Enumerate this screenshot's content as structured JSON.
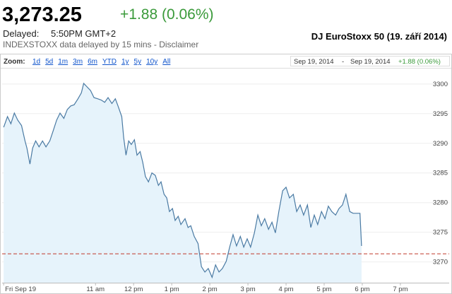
{
  "header": {
    "price": "3,273.25",
    "change": "+1.88 (0.06%)",
    "delayed_label": "Delayed:",
    "delayed_time": "5:50PM GMT+2",
    "source": "INDEXSTOXX data delayed by 15 mins - Disclaimer",
    "title": "DJ EuroStoxx 50 (19. září 2014)"
  },
  "zoom": {
    "label": "Zoom:",
    "options": [
      "1d",
      "5d",
      "1m",
      "3m",
      "6m",
      "YTD",
      "1y",
      "5y",
      "10y",
      "All"
    ],
    "from": "Sep 19, 2014",
    "separator": "-",
    "to": "Sep 19, 2014",
    "change": "+1.88 (0.06%)"
  },
  "chart_data": {
    "type": "line",
    "color": "#4a7aa3",
    "area_color": "#e6f3fb",
    "prev_close": 3271.37,
    "prev_close_color": "#c0392b",
    "grid": true,
    "x": [
      8.59,
      8.69,
      8.78,
      8.87,
      8.96,
      9.06,
      9.15,
      9.2,
      9.28,
      9.35,
      9.43,
      9.52,
      9.61,
      9.7,
      9.8,
      9.89,
      9.98,
      10.07,
      10.17,
      10.26,
      10.35,
      10.44,
      10.54,
      10.63,
      10.69,
      10.78,
      10.87,
      10.96,
      11.06,
      11.15,
      11.24,
      11.33,
      11.43,
      11.52,
      11.59,
      11.69,
      11.74,
      11.8,
      11.87,
      11.94,
      12.02,
      12.09,
      12.17,
      12.24,
      12.31,
      12.39,
      12.48,
      12.57,
      12.65,
      12.72,
      12.8,
      12.87,
      12.94,
      13.02,
      13.09,
      13.17,
      13.24,
      13.35,
      13.43,
      13.5,
      13.59,
      13.69,
      13.78,
      13.87,
      13.96,
      14.06,
      14.15,
      14.24,
      14.33,
      14.43,
      14.52,
      14.61,
      14.7,
      14.8,
      14.89,
      14.98,
      15.07,
      15.17,
      15.26,
      15.35,
      15.44,
      15.54,
      15.63,
      15.72,
      15.81,
      15.91,
      16.0,
      16.09,
      16.19,
      16.28,
      16.37,
      16.46,
      16.56,
      16.65,
      16.74,
      16.83,
      16.93,
      17.02,
      17.11,
      17.2,
      17.3,
      17.39,
      17.48,
      17.57,
      17.67,
      17.76,
      17.85,
      17.94,
      17.98
    ],
    "values": [
      3292.7,
      3294.5,
      3293.3,
      3295.1,
      3293.9,
      3293.0,
      3290.4,
      3289.2,
      3286.5,
      3289.2,
      3290.4,
      3289.4,
      3290.4,
      3289.4,
      3290.4,
      3292.1,
      3293.9,
      3295.1,
      3294.2,
      3295.7,
      3296.3,
      3296.5,
      3297.5,
      3298.5,
      3300.1,
      3299.5,
      3298.9,
      3297.7,
      3297.5,
      3297.3,
      3296.9,
      3297.7,
      3296.7,
      3297.5,
      3296.3,
      3294.5,
      3291.0,
      3288.0,
      3290.4,
      3289.8,
      3290.6,
      3288.0,
      3288.6,
      3286.8,
      3284.4,
      3283.5,
      3285.0,
      3284.6,
      3282.9,
      3283.5,
      3281.4,
      3280.8,
      3278.5,
      3279.0,
      3277.0,
      3277.7,
      3276.3,
      3277.3,
      3275.8,
      3276.1,
      3274.3,
      3273.1,
      3269.2,
      3268.3,
      3268.9,
      3267.4,
      3269.5,
      3268.3,
      3268.9,
      3270.1,
      3272.5,
      3274.6,
      3272.7,
      3274.3,
      3272.5,
      3273.9,
      3272.5,
      3274.9,
      3277.9,
      3276.1,
      3277.3,
      3275.5,
      3276.7,
      3274.9,
      3278.5,
      3282.0,
      3282.6,
      3280.8,
      3281.4,
      3278.5,
      3279.6,
      3277.9,
      3279.6,
      3275.8,
      3277.9,
      3276.3,
      3278.5,
      3277.3,
      3279.4,
      3278.5,
      3277.9,
      3279.0,
      3279.6,
      3281.4,
      3278.5,
      3278.2,
      3278.2,
      3278.2,
      3272.7
    ],
    "xlim": [
      8.55,
      20.28
    ],
    "ylim": [
      3266.5,
      3302.6
    ],
    "xticks": [
      {
        "value": 8.59,
        "label": "Fri Sep 19"
      },
      {
        "value": 11,
        "label": "11 am"
      },
      {
        "value": 12,
        "label": "12 pm"
      },
      {
        "value": 13,
        "label": "1 pm"
      },
      {
        "value": 14,
        "label": "2 pm"
      },
      {
        "value": 15,
        "label": "3 pm"
      },
      {
        "value": 16,
        "label": "4 pm"
      },
      {
        "value": 17,
        "label": "5 pm"
      },
      {
        "value": 18,
        "label": "6 pm"
      },
      {
        "value": 19,
        "label": "7 pm"
      }
    ],
    "yticks": [
      3270,
      3275,
      3280,
      3285,
      3290,
      3295,
      3300
    ]
  }
}
